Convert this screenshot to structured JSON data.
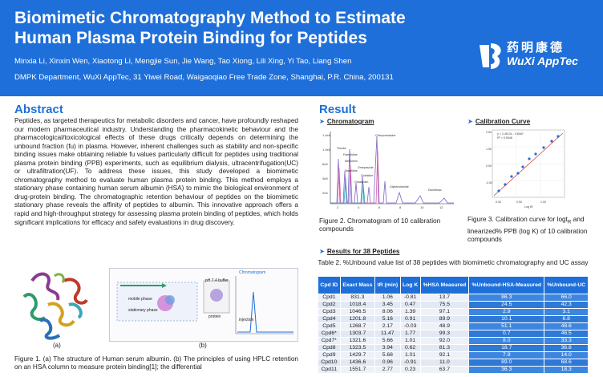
{
  "header": {
    "title": "Biomimetic Chromatography Method to Estimate Human Plasma Protein Binding for Peptides",
    "authors": "Minxia Li, Xinxin Wen, Xiaotong Li, Mengjie Sun, Jie Wang, Tao Xiong, Lili Xing, Yi Tao, Liang Shen",
    "affiliation": "DMPK Department, WuXi AppTec, 31 Yiwei Road, Waigaoqiao Free Trade Zone, Shanghai, P.R. China, 200131",
    "logo_cn": "药明康德",
    "logo_en": "WuXi AppTec"
  },
  "abstract": {
    "heading": "Abstract",
    "text": "Peptides, as targeted therapeutics for metabolic disorders and cancer, have profoundly reshaped our modern pharmaceutical industry. Understanding the pharmacokinetic behaviour and the pharmacological/toxicological effects of these drugs critically depends on determining the unbound fraction (fu) in plasma. However, inherent challenges such as stability and non-specific binding issues make obtaining reliable fu values particularly difficult for peptides using traditional plasma protein binding (PPB) experiments, such as equilibrium dialysis, ultracentrifugation(UC) or ultrafiltration(UF). To address these issues, this study developed a biomimetic chromatography method to evaluate human plasma protein binding. This method employs a stationary phase containing human serum albumin (HSA) to mimic the biological environment of drug-protein binding. The chromatographic retention behaviour of peptides on the biomimetic stationary phase reveals the affinity of peptides to albumin. This innovative approach offers a rapid and high-throughput strategy for assessing plasma protein binding of peptides, which holds significant implications for efficacy and safety evaluations in drug discovery."
  },
  "figure1": {
    "label_a": "(a)",
    "label_b": "(b)",
    "panel_b": {
      "mobile_phase": "mobile phase",
      "stationary_phase": "stationary phase",
      "ph_buffer": "pH 7.4 buffer",
      "protein": "protein",
      "chromatogram": "Chromatogram",
      "injection": "injection"
    },
    "caption": "Figure 1. (a) The structure of Human serum albumin. (b) The principles of using HPLC retention on an HSA column to measure protein binding[1]; the differential"
  },
  "result": {
    "heading": "Result",
    "chromatogram_heading": "Chromatogram",
    "calibration_heading": "Calibration Curve",
    "peptides_heading": "Results for 38 Peptides",
    "fig2_caption": "Figure 2.  Chromatogram of 10 calibration compounds",
    "fig3_caption_a": "Figure 3.  Calibration curve for logt",
    "fig3_caption_sub": "R",
    "fig3_caption_b": " and linearized% PPB (log K) of  10 calibration compounds",
    "chrom_peaks": [
      "Chlorpromazine",
      "Warfarin",
      "Nizatidine",
      "Famotidine",
      "Metformin",
      "Nicotinic",
      "Diclofenac",
      "Quinidine",
      "Glybenclamide",
      "Carbamazepine"
    ],
    "chrom_axis_x": "Time (min)",
    "chrom_axis_y": "Intensity (mAU)",
    "calib_equation": "y = 2.4513x - 0.8087",
    "calib_r2": "R² = 0.9548",
    "calib_axis_x": "Log tR",
    "calib_axis_y": "Linearized %PPB (log K)"
  },
  "table2": {
    "caption": "Table 2. %Unbound value list of 38 peptides with biomimetic chromatography and UC assay",
    "headers": [
      "Cpd ID",
      "Exact Mass",
      "tR (min)",
      "Log K",
      "%HSA Measured",
      "%Unbound-HSA-Measured",
      "%Unbound-UC"
    ],
    "rows": [
      [
        "Cpd1",
        "831.3",
        "1.06",
        "-0.81",
        "13.7",
        "86.3",
        "66.0"
      ],
      [
        "Cpd2",
        "1018.4",
        "3.45",
        "0.47",
        "75.5",
        "24.5",
        "42.3"
      ],
      [
        "Cpd3",
        "1046.5",
        "8.06",
        "1.39",
        "97.1",
        "2.9",
        "3.1"
      ],
      [
        "Cpd4",
        "1201.8",
        "5.16",
        "0.91",
        "89.9",
        "10.1",
        "6.8"
      ],
      [
        "Cpd5",
        "1268.7",
        "2.17",
        "-0.03",
        "48.9",
        "51.1",
        "48.6"
      ],
      [
        "Cpd6*",
        "1303.7",
        "11.47",
        "1.77",
        "99.3",
        "0.7",
        "46.5"
      ],
      [
        "Cpd7*",
        "1321.6",
        "5.66",
        "1.01",
        "92.0",
        "8.0",
        "33.3"
      ],
      [
        "Cpd8",
        "1323.5",
        "3.94",
        "0.62",
        "81.3",
        "18.7",
        "36.8"
      ],
      [
        "Cpd9",
        "1429.7",
        "5.68",
        "1.01",
        "92.1",
        "7.9",
        "14.0"
      ],
      [
        "Cpd10",
        "1436.6",
        "0.96",
        "-0.91",
        "11.0",
        "89.0",
        "68.6"
      ],
      [
        "Cpd11",
        "1551.7",
        "2.77",
        "0.23",
        "63.7",
        "36.3",
        "18.3"
      ]
    ]
  },
  "colors": {
    "primary": "#1e6fd9",
    "table_dark": "#2e78d6"
  }
}
